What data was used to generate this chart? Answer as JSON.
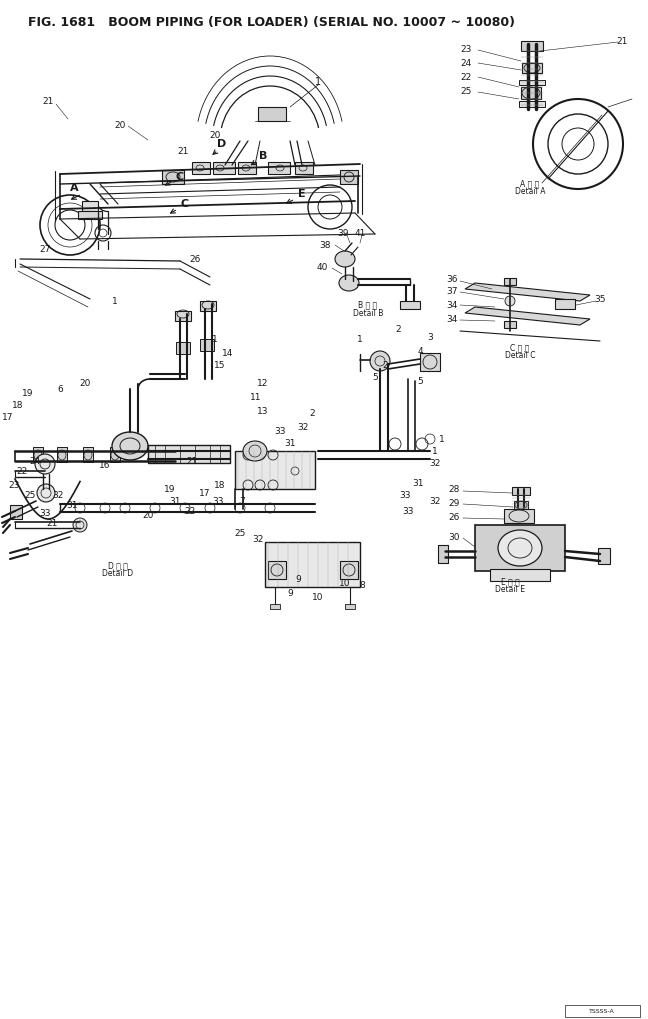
{
  "title": "FIG. 1681   BOOM PIPING (FOR LOADER) (SERIAL NO. 10007 ~ 10080)",
  "bg_color": "#ffffff",
  "fig_width": 6.48,
  "fig_height": 10.2,
  "dpi": 100,
  "line_color": "#1a1a1a",
  "gray_color": "#888888",
  "detail_a_label": "A 詳 圖\nDetail A",
  "detail_b_label": "B 詳 圖\nDetail B",
  "detail_c_label": "C 詳 圖\nDetail C",
  "detail_d_label": "D 詳 圖\nDetail D",
  "detail_e_label": "E 詳 圖\nDetail E"
}
